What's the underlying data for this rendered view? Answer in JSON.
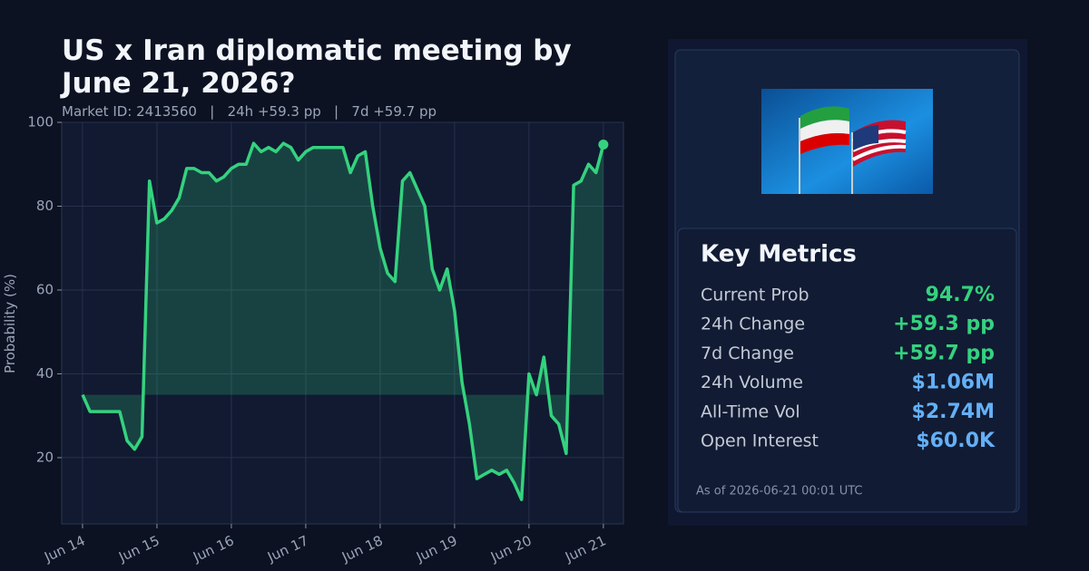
{
  "chart_data": {
    "type": "line",
    "title": "US x Iran diplomatic meeting by June 21, 2026?",
    "subtitle": "Market ID: 2413560   |   24h +59.3 pp   |   7d +59.7 pp",
    "y_label": "Probability (%)",
    "series": [
      {
        "name": "Probability",
        "color": "#34d27e",
        "values": [
          35,
          31,
          31,
          31,
          31,
          31,
          24,
          22,
          25,
          86,
          76,
          77,
          79,
          82,
          89,
          89,
          88,
          88,
          86,
          87,
          89,
          90,
          90,
          95,
          93,
          94,
          93,
          95,
          94,
          91,
          93,
          94,
          94,
          94,
          94,
          94,
          88,
          92,
          93,
          80,
          70,
          64,
          62,
          86,
          88,
          84,
          80,
          65,
          60,
          65,
          55,
          38,
          28,
          15,
          16,
          17,
          16,
          17,
          14,
          10,
          40,
          35,
          44,
          30,
          28,
          21,
          85,
          86,
          90,
          88,
          94.7
        ]
      }
    ],
    "xlim": [
      -2.8,
      72.7
    ],
    "xticks": [
      {
        "value": 0,
        "label": "Jun 14"
      },
      {
        "value": 10,
        "label": "Jun 15"
      },
      {
        "value": 20,
        "label": "Jun 16"
      },
      {
        "value": 30,
        "label": "Jun 17"
      },
      {
        "value": 40,
        "label": "Jun 18"
      },
      {
        "value": 50,
        "label": "Jun 19"
      },
      {
        "value": 60,
        "label": "Jun 20"
      },
      {
        "value": 70,
        "label": "Jun 21"
      }
    ],
    "ylim": [
      4.2,
      100
    ],
    "yticks": [
      20,
      40,
      60,
      80,
      100
    ],
    "grid": true
  },
  "panel": {
    "title": "Key Metrics",
    "metrics": [
      {
        "label": "Current Prob",
        "value": "94.7%",
        "color": "#34d27e"
      },
      {
        "label": "24h Change",
        "value": "+59.3 pp",
        "color": "#34d27e"
      },
      {
        "label": "7d Change",
        "value": "+59.7 pp",
        "color": "#34d27e"
      },
      {
        "label": "24h Volume",
        "value": "$1.06M",
        "color": "#63b0f7"
      },
      {
        "label": "All-Time Vol",
        "value": "$2.74M",
        "color": "#63b0f7"
      },
      {
        "label": "Open Interest",
        "value": "$60.0K",
        "color": "#63b0f7"
      }
    ],
    "footer": "As of 2026-06-21 00:01 UTC"
  }
}
